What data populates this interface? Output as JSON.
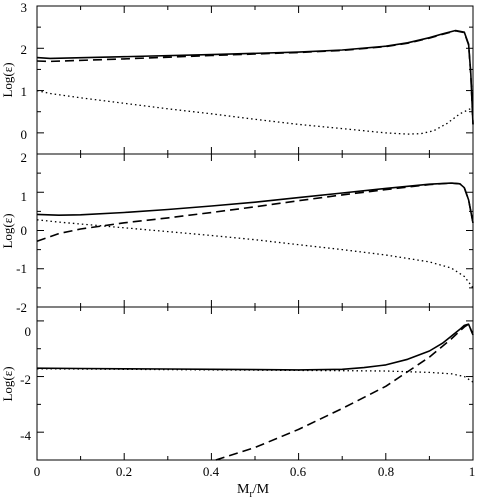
{
  "chart_data": [
    {
      "type": "line",
      "panel": "top",
      "ylabel": "Log(ε)",
      "xlim": [
        0,
        1
      ],
      "ylim": [
        -0.5,
        3
      ],
      "yticks": [
        0,
        1,
        2,
        3
      ],
      "series": [
        {
          "style": "solid",
          "x": [
            0,
            0.03,
            0.2,
            0.4,
            0.6,
            0.7,
            0.8,
            0.85,
            0.9,
            0.93,
            0.96,
            0.98,
            0.99,
            0.995,
            1.0
          ],
          "y": [
            1.78,
            1.76,
            1.8,
            1.85,
            1.91,
            1.96,
            2.05,
            2.13,
            2.25,
            2.34,
            2.42,
            2.38,
            2.1,
            1.4,
            0.2
          ]
        },
        {
          "style": "dashed",
          "x": [
            0,
            0.03,
            0.2,
            0.4,
            0.6,
            0.7,
            0.8,
            0.85,
            0.9,
            0.93,
            0.96,
            0.98,
            0.99,
            0.995,
            1.0
          ],
          "y": [
            1.7,
            1.69,
            1.75,
            1.83,
            1.9,
            1.95,
            2.04,
            2.12,
            2.24,
            2.33,
            2.41,
            2.37,
            2.08,
            1.38,
            0.2
          ]
        },
        {
          "style": "dotted",
          "x": [
            0,
            0.03,
            0.1,
            0.2,
            0.3,
            0.4,
            0.5,
            0.6,
            0.7,
            0.8,
            0.85,
            0.88,
            0.91,
            0.94,
            0.97,
            1.0
          ],
          "y": [
            1.0,
            0.93,
            0.83,
            0.7,
            0.57,
            0.45,
            0.32,
            0.2,
            0.1,
            0.0,
            -0.03,
            -0.02,
            0.05,
            0.22,
            0.45,
            0.6
          ]
        }
      ]
    },
    {
      "type": "line",
      "panel": "middle",
      "ylabel": "Log(ε)",
      "xlim": [
        0,
        1
      ],
      "ylim": [
        -2,
        2
      ],
      "yticks": [
        -2,
        -1,
        0,
        1,
        2
      ],
      "series": [
        {
          "style": "solid",
          "x": [
            0,
            0.05,
            0.1,
            0.2,
            0.3,
            0.4,
            0.5,
            0.6,
            0.7,
            0.8,
            0.9,
            0.95,
            0.97,
            0.98,
            0.99,
            1.0
          ],
          "y": [
            0.42,
            0.4,
            0.41,
            0.47,
            0.55,
            0.64,
            0.74,
            0.86,
            0.98,
            1.1,
            1.21,
            1.24,
            1.22,
            1.12,
            0.8,
            0.2
          ]
        },
        {
          "style": "dashed",
          "x": [
            0,
            0.05,
            0.1,
            0.2,
            0.3,
            0.4,
            0.5,
            0.6,
            0.7,
            0.8,
            0.9,
            0.95,
            0.97,
            0.98,
            0.99,
            1.0
          ],
          "y": [
            -0.28,
            -0.08,
            0.04,
            0.2,
            0.33,
            0.47,
            0.62,
            0.78,
            0.93,
            1.07,
            1.2,
            1.24,
            1.22,
            1.12,
            0.8,
            0.2
          ]
        },
        {
          "style": "dotted",
          "x": [
            0,
            0.05,
            0.1,
            0.2,
            0.3,
            0.4,
            0.5,
            0.6,
            0.7,
            0.8,
            0.9,
            0.95,
            0.98,
            1.0
          ],
          "y": [
            0.28,
            0.22,
            0.17,
            0.07,
            -0.03,
            -0.13,
            -0.24,
            -0.37,
            -0.5,
            -0.64,
            -0.82,
            -0.98,
            -1.2,
            -1.5
          ]
        }
      ]
    },
    {
      "type": "line",
      "panel": "bottom",
      "xlabel": "M_r/M",
      "ylabel": "Log(ε)",
      "xlim": [
        0,
        1
      ],
      "ylim": [
        -5,
        0.5
      ],
      "yticks": [
        -4,
        -2,
        0
      ],
      "xticks": [
        0,
        0.2,
        0.4,
        0.6,
        0.8,
        1
      ],
      "series": [
        {
          "style": "solid",
          "x": [
            0,
            0.1,
            0.2,
            0.3,
            0.4,
            0.5,
            0.6,
            0.7,
            0.75,
            0.8,
            0.85,
            0.9,
            0.93,
            0.95,
            0.97,
            0.98,
            0.99,
            1.0
          ],
          "y": [
            -1.7,
            -1.71,
            -1.72,
            -1.73,
            -1.74,
            -1.75,
            -1.76,
            -1.74,
            -1.68,
            -1.58,
            -1.38,
            -1.08,
            -0.8,
            -0.55,
            -0.3,
            -0.16,
            -0.12,
            -0.5
          ]
        },
        {
          "style": "dashed",
          "x": [
            0.41,
            0.5,
            0.6,
            0.7,
            0.8,
            0.9,
            0.95,
            0.98,
            0.99,
            1.0
          ],
          "y": [
            -5.0,
            -4.55,
            -3.9,
            -3.15,
            -2.35,
            -1.3,
            -0.65,
            -0.22,
            -0.12,
            -0.5
          ]
        },
        {
          "style": "dotted",
          "x": [
            0,
            0.2,
            0.4,
            0.6,
            0.7,
            0.8,
            0.9,
            0.95,
            0.98,
            1.0
          ],
          "y": [
            -1.72,
            -1.74,
            -1.76,
            -1.78,
            -1.79,
            -1.8,
            -1.85,
            -1.9,
            -2.0,
            -2.2
          ]
        }
      ]
    }
  ],
  "axes": {
    "ylabel": "Log(ε)",
    "xlabel_main": "M",
    "xlabel_sub": "r",
    "xlabel_tail": "/M",
    "xtick_labels": [
      "0",
      "0.2",
      "0.4",
      "0.6",
      "0.8",
      "1"
    ],
    "top_ytick_labels": [
      "3",
      "2",
      "1",
      "0"
    ],
    "middle_ytick_labels": [
      "2",
      "1",
      "0",
      "-1",
      "-2"
    ],
    "bottom_ytick_labels": [
      "0",
      "-2",
      "-4"
    ]
  }
}
